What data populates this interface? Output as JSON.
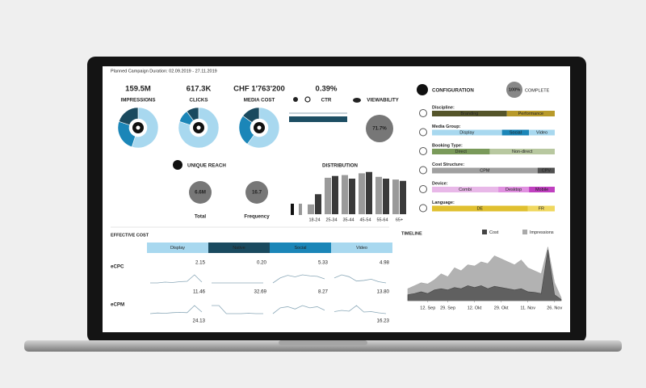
{
  "header": {
    "duration": "Planned Campaign Duration: 02.09.2019 - 27.11.2019"
  },
  "kpis": [
    {
      "value": "159.5M",
      "label": "IMPRESSIONS"
    },
    {
      "value": "617.3K",
      "label": "CLICKS"
    },
    {
      "value": "CHF 1'763'200",
      "label": "MEDIA COST"
    },
    {
      "value": "0.39%",
      "label": "CTR"
    }
  ],
  "donuts": {
    "colors": [
      "#a8d8ef",
      "#1b86b8",
      "#1a4a5f"
    ],
    "shares": [
      [
        55,
        25,
        20
      ],
      [
        80,
        10,
        10
      ],
      [
        60,
        25,
        15
      ]
    ]
  },
  "viewability": {
    "label": "VIEWABILITY",
    "value": "71.7%"
  },
  "reach": {
    "title": "UNIQUE REACH",
    "total": {
      "value": "6.6M",
      "label": "Total"
    },
    "frequency": {
      "value": "16.7",
      "label": "Frequency"
    }
  },
  "distribution": {
    "title": "DISTRIBUTION",
    "categories": [
      "18-24",
      "25-34",
      "35-44",
      "45-54",
      "55-64",
      "65+"
    ],
    "ylim": [
      0,
      100
    ],
    "series": [
      {
        "color": "#9a9a9a",
        "values": [
          22,
          82,
          88,
          92,
          84,
          78
        ]
      },
      {
        "color": "#3a3a3a",
        "values": [
          45,
          86,
          80,
          95,
          80,
          75
        ]
      }
    ]
  },
  "configuration": {
    "title": "CONFIGURATION",
    "progress": "100%",
    "status": "COMPLETE",
    "groups": [
      {
        "label": "Discipline:",
        "segments": [
          {
            "name": "Branding",
            "share": 61,
            "color": "#55552a"
          },
          {
            "name": "Performance",
            "share": 39,
            "color": "#b89a2a"
          }
        ]
      },
      {
        "label": "Media Group:",
        "segments": [
          {
            "name": "Display",
            "share": 57,
            "color": "#a8d8ef"
          },
          {
            "name": "Social",
            "share": 22,
            "color": "#1b86b8"
          },
          {
            "name": "Video",
            "share": 21,
            "color": "#a8d8ef"
          }
        ]
      },
      {
        "label": "Booking Type:",
        "segments": [
          {
            "name": "Direct",
            "share": 47,
            "color": "#7a9a5a"
          },
          {
            "name": "Non-direct",
            "share": 53,
            "color": "#b8c8a0"
          }
        ]
      },
      {
        "label": "Cost Structure:",
        "segments": [
          {
            "name": "CPM",
            "share": 86,
            "color": "#a0a0a0"
          },
          {
            "name": "CPV",
            "share": 14,
            "color": "#505050"
          }
        ]
      },
      {
        "label": "Device:",
        "segments": [
          {
            "name": "Combi",
            "share": 54,
            "color": "#e8b8e8"
          },
          {
            "name": "Desktop",
            "share": 25,
            "color": "#e090e0"
          },
          {
            "name": "Mobile",
            "share": 21,
            "color": "#c040c0"
          }
        ]
      },
      {
        "label": "Language:",
        "segments": [
          {
            "name": "DE",
            "share": 78,
            "color": "#e0c030"
          },
          {
            "name": "FR",
            "share": 22,
            "color": "#f0d860"
          }
        ]
      }
    ]
  },
  "effective_cost": {
    "title": "EFFECTIVE COST",
    "columns": [
      {
        "name": "Display",
        "color": "#a8d8ef"
      },
      {
        "name": "Native",
        "color": "#1a4a5f"
      },
      {
        "name": "Social",
        "color": "#1b86b8"
      },
      {
        "name": "Video",
        "color": "#a8d8ef"
      }
    ],
    "row_labels": [
      "eCPC",
      "eCPM"
    ],
    "values": [
      [
        "2.15",
        "0.20",
        "5.33",
        "4.98"
      ],
      [
        "11.46",
        "32.69",
        "8.27",
        "13.80"
      ]
    ],
    "footer_values": [
      "24.13",
      "16.23"
    ],
    "sparklines": [
      [
        [
          3,
          3,
          3.2,
          3.1,
          3.3,
          3.4,
          5,
          3.2
        ],
        [
          3,
          3,
          3,
          3,
          3,
          3,
          3,
          3
        ],
        [
          3,
          4,
          4.5,
          4.2,
          4.6,
          4.4,
          4.3,
          3.8
        ],
        [
          4,
          4.5,
          4.2,
          3.5,
          3.6,
          3.8,
          3.4,
          3.2
        ]
      ],
      [
        [
          3,
          3.2,
          3.1,
          3.3,
          3.4,
          3.3,
          5.5,
          3.5
        ],
        [
          5,
          5,
          3,
          3,
          3,
          3.1,
          3,
          3
        ],
        [
          3,
          3.5,
          3.6,
          3.4,
          3.7,
          3.5,
          3.6,
          3.3
        ],
        [
          3.5,
          3.8,
          3.6,
          5,
          3.4,
          3.5,
          3.2,
          3
        ]
      ]
    ]
  },
  "timeline": {
    "title": "TIMELINE",
    "xlim": [
      0,
      23
    ],
    "ylim": [
      0,
      100
    ],
    "xticks": [
      {
        "value": 3,
        "label": "12. Sep"
      },
      {
        "value": 6,
        "label": "29. Sep"
      },
      {
        "value": 10,
        "label": "12. Okt"
      },
      {
        "value": 14,
        "label": "29. Okt"
      },
      {
        "value": 18,
        "label": "11. Nov"
      },
      {
        "value": 22,
        "label": "26. Nov"
      }
    ],
    "series": [
      {
        "name": "Cost",
        "color": "#444444",
        "values": [
          10,
          12,
          15,
          12,
          18,
          20,
          18,
          22,
          20,
          25,
          22,
          25,
          20,
          24,
          22,
          20,
          18,
          20,
          15,
          14,
          12,
          85,
          10,
          2
        ]
      },
      {
        "name": "Impressions",
        "color": "#aaaaaa",
        "values": [
          20,
          25,
          30,
          28,
          35,
          45,
          40,
          55,
          50,
          60,
          58,
          65,
          62,
          75,
          70,
          65,
          60,
          68,
          55,
          50,
          45,
          90,
          30,
          5
        ]
      }
    ]
  }
}
